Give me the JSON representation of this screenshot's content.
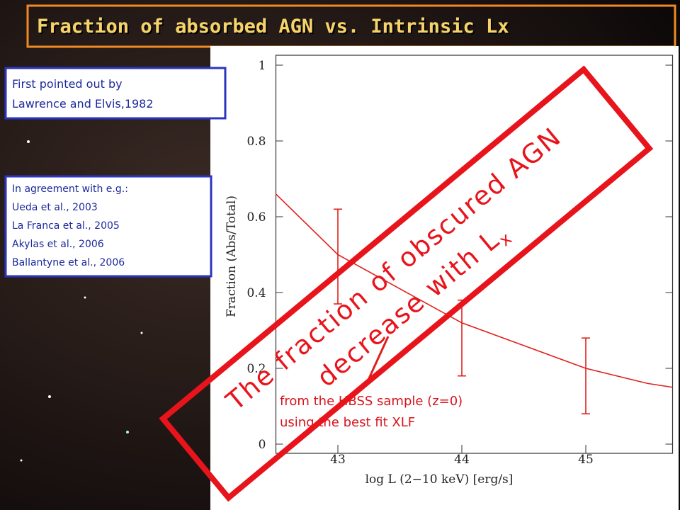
{
  "slide": {
    "title": "Fraction of absorbed AGN vs. Intrinsic Lx",
    "note1": [
      "First pointed out by",
      "Lawrence and Elvis,1982"
    ],
    "note2": [
      "In agreement with e.g.:",
      "Ueda et al., 2003",
      "La Franca et al., 2005",
      "Akylas et al., 2006",
      "Ballantyne et al., 2006"
    ],
    "callout": {
      "line1": "The fraction of obscured AGN",
      "line2": "decrease with L",
      "subscript": "x"
    }
  },
  "chart_data": {
    "type": "line",
    "x_label": "log L (2−10 keV) [erg/s]",
    "y_label": "Fraction (Abs/Total)",
    "x": [
      42.5,
      43,
      43.5,
      44,
      44.5,
      45,
      45.5,
      45.7
    ],
    "series": [
      {
        "color": "#e0201c",
        "values": [
          0.66,
          0.5,
          0.41,
          0.32,
          0.26,
          0.2,
          0.16,
          0.15
        ]
      }
    ],
    "error_bars": [
      {
        "x": 43,
        "low": 0.37,
        "high": 0.62
      },
      {
        "x": 44,
        "low": 0.18,
        "high": 0.38
      },
      {
        "x": 45,
        "low": 0.08,
        "high": 0.28
      }
    ],
    "annotation": [
      "from the HBSS sample (z=0)",
      "using the best fit XLF"
    ],
    "xlim": [
      42.5,
      45.7
    ],
    "ylim": [
      0,
      1
    ],
    "xticks": [
      43,
      44,
      45
    ],
    "yticks": [
      0,
      0.2,
      0.4,
      0.6,
      0.8,
      1
    ]
  }
}
